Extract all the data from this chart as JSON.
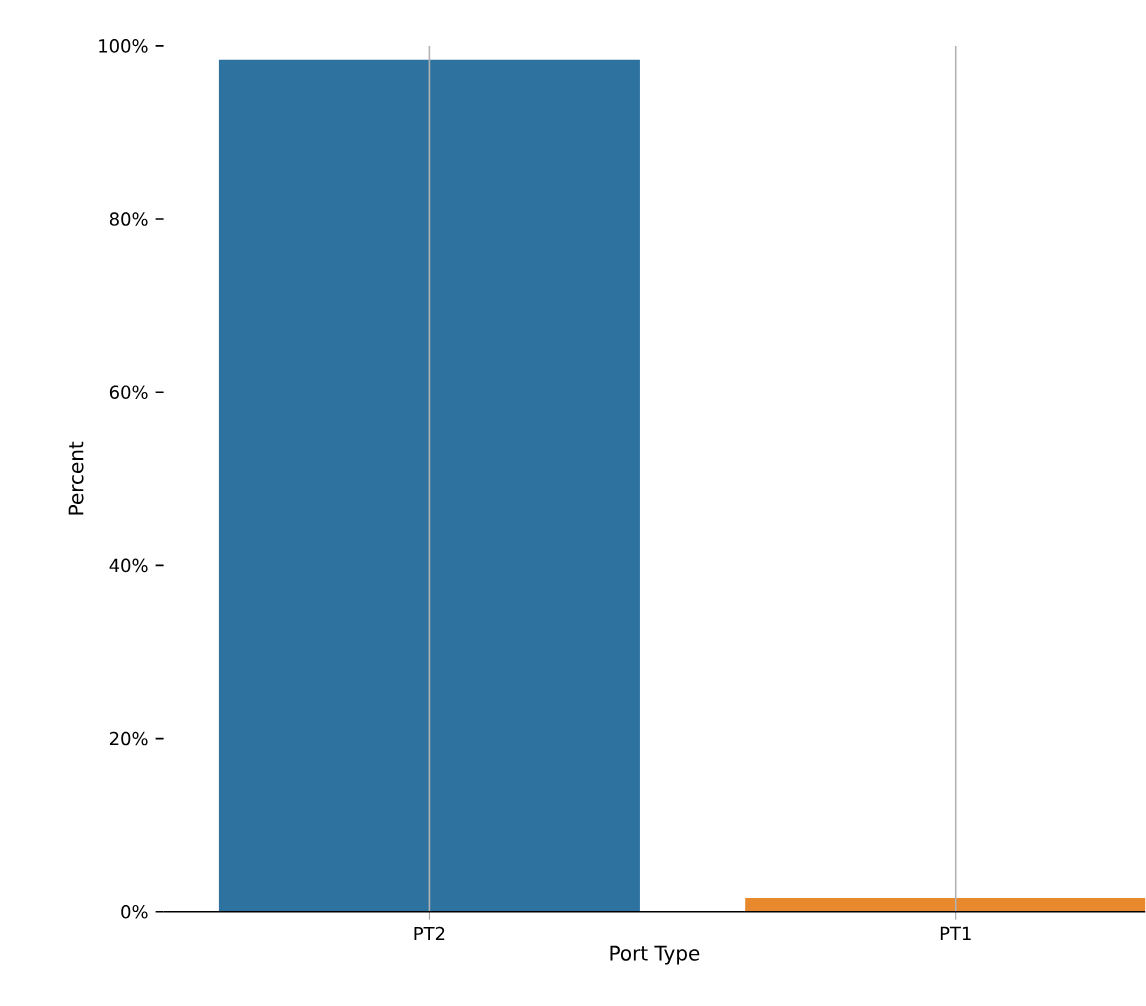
{
  "chart_data": {
    "type": "bar",
    "xlabel": "Port Type",
    "ylabel": "Percent",
    "categories": [
      "PT2",
      "PT1"
    ],
    "values": [
      98.4,
      1.6
    ],
    "colors": [
      "#2e72a0",
      "#e8892d"
    ],
    "ylim": [
      0,
      100
    ],
    "yticks": [
      {
        "value": 0,
        "label": "0%"
      },
      {
        "value": 20,
        "label": "20%"
      },
      {
        "value": 40,
        "label": "40%"
      },
      {
        "value": 60,
        "label": "60%"
      },
      {
        "value": 80,
        "label": "80%"
      },
      {
        "value": 100,
        "label": "100%"
      }
    ],
    "grid": "x"
  }
}
